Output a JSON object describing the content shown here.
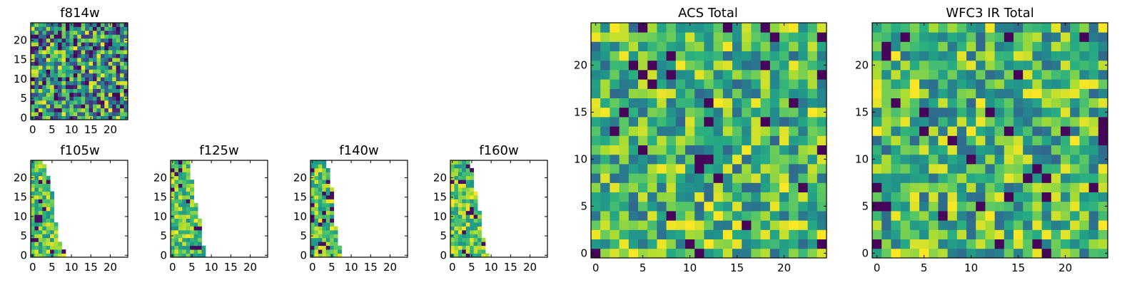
{
  "chart_data": [
    {
      "type": "heatmap",
      "title": "f814w",
      "colormap": "viridis",
      "xlim": [
        0,
        25
      ],
      "ylim": [
        0,
        25
      ],
      "xticks": [
        0,
        5,
        10,
        15,
        20
      ],
      "yticks": [
        0,
        5,
        10,
        15,
        20
      ],
      "grid": false,
      "seed": 814,
      "fill": "full",
      "value_range": [
        0,
        1
      ]
    },
    {
      "type": "heatmap",
      "title": "f105w",
      "colormap": "viridis",
      "xlim": [
        0,
        25
      ],
      "ylim": [
        0,
        25
      ],
      "xticks": [
        0,
        5,
        10,
        15,
        20
      ],
      "yticks": [
        0,
        5,
        10,
        15,
        20
      ],
      "grid": false,
      "seed": 105,
      "fill": "partial",
      "row_extent": [
        9,
        9,
        8,
        8,
        7,
        7,
        7,
        7,
        7,
        6,
        6,
        6,
        6,
        6,
        6,
        6,
        6,
        5,
        5,
        5,
        5,
        4,
        4,
        4,
        3
      ]
    },
    {
      "type": "heatmap",
      "title": "f125w",
      "colormap": "viridis",
      "xlim": [
        0,
        25
      ],
      "ylim": [
        0,
        25
      ],
      "xticks": [
        0,
        5,
        10,
        15,
        20
      ],
      "yticks": [
        0,
        5,
        10,
        15,
        20
      ],
      "grid": false,
      "seed": 125,
      "fill": "partial",
      "row_extent": [
        9,
        9,
        9,
        8,
        8,
        8,
        8,
        8,
        8,
        8,
        7,
        7,
        7,
        7,
        6,
        6,
        6,
        6,
        6,
        6,
        5,
        5,
        5,
        5,
        5
      ]
    },
    {
      "type": "heatmap",
      "title": "f140w",
      "colormap": "viridis",
      "xlim": [
        0,
        25
      ],
      "ylim": [
        0,
        25
      ],
      "xticks": [
        0,
        5,
        10,
        15,
        20
      ],
      "yticks": [
        0,
        5,
        10,
        15,
        20
      ],
      "grid": false,
      "seed": 140,
      "fill": "partial",
      "row_extent": [
        8,
        8,
        8,
        7,
        7,
        7,
        7,
        7,
        6,
        6,
        6,
        6,
        6,
        6,
        6,
        6,
        6,
        6,
        5,
        5,
        5,
        5,
        5,
        4,
        4
      ]
    },
    {
      "type": "heatmap",
      "title": "f160w",
      "colormap": "viridis",
      "xlim": [
        0,
        25
      ],
      "ylim": [
        0,
        25
      ],
      "xticks": [
        0,
        5,
        10,
        15,
        20
      ],
      "yticks": [
        0,
        5,
        10,
        15,
        20
      ],
      "grid": false,
      "seed": 160,
      "fill": "partial",
      "row_extent": [
        10,
        9,
        9,
        9,
        9,
        8,
        8,
        8,
        8,
        8,
        8,
        8,
        7,
        7,
        7,
        7,
        7,
        6,
        6,
        6,
        6,
        6,
        6,
        5,
        5
      ]
    },
    {
      "type": "heatmap",
      "title": "ACS Total",
      "colormap": "viridis",
      "xlim": [
        0,
        25
      ],
      "ylim": [
        0,
        25
      ],
      "xticks": [
        0,
        5,
        10,
        15,
        20
      ],
      "yticks": [
        0,
        5,
        10,
        15,
        20
      ],
      "grid": false,
      "seed": 2001,
      "fill": "full",
      "value_range": [
        0.3,
        1
      ]
    },
    {
      "type": "heatmap",
      "title": "WFC3 IR Total",
      "colormap": "viridis",
      "xlim": [
        0,
        25
      ],
      "ylim": [
        0,
        25
      ],
      "xticks": [
        0,
        5,
        10,
        15,
        20
      ],
      "yticks": [
        0,
        5,
        10,
        15,
        20
      ],
      "grid": false,
      "seed": 3003,
      "fill": "full",
      "value_range": [
        0.3,
        1
      ]
    }
  ]
}
